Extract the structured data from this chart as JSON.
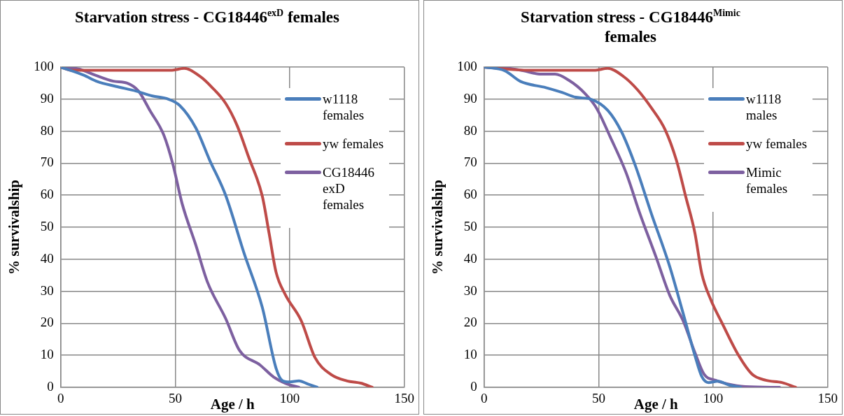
{
  "chart_data": [
    {
      "type": "line",
      "title": "Starvation stress - CG18446$^{exD}$ females",
      "xlabel": "Age / h",
      "ylabel": "% survivalship",
      "xlim": [
        0,
        150
      ],
      "xticks": [
        0,
        50,
        100,
        150
      ],
      "ylim": [
        0,
        100
      ],
      "yticks": [
        0,
        10,
        20,
        30,
        40,
        50,
        60,
        70,
        80,
        90,
        100
      ],
      "grid": true,
      "legend": "right",
      "marker": "none",
      "line_style": "solid",
      "series": [
        {
          "name": "w1118 females",
          "color": "#4a7ebb",
          "x": [
            0,
            10,
            16,
            24,
            33,
            40,
            47,
            52,
            59,
            65,
            72,
            80,
            88,
            94,
            97,
            100,
            104,
            108,
            112
          ],
          "values": [
            100,
            97.5,
            95.5,
            94,
            92.5,
            91,
            90,
            88,
            81,
            71,
            60,
            42,
            25,
            6,
            2,
            1.7,
            2,
            1,
            0
          ]
        },
        {
          "name": "yw females",
          "color": "#be4b48",
          "x": [
            0,
            5,
            20,
            48,
            54,
            61,
            66,
            72,
            77,
            82,
            88,
            91,
            94,
            98,
            105,
            111,
            118,
            125,
            131,
            136
          ],
          "values": [
            100,
            99,
            99,
            99,
            99.6,
            97,
            93.7,
            88.7,
            81.8,
            72,
            59.7,
            48,
            36,
            29,
            20.8,
            9.3,
            4,
            2,
            1.3,
            0
          ]
        },
        {
          "name": "CG18446 exD females",
          "color": "#7d60a0",
          "x": [
            0,
            8,
            15,
            23,
            29,
            34,
            39,
            45,
            49,
            53,
            59,
            64,
            72,
            78,
            87,
            93,
            98,
            104
          ],
          "values": [
            100,
            99.4,
            97.5,
            95.6,
            95,
            92.5,
            86.4,
            78.8,
            69.6,
            57.4,
            44.4,
            33,
            21.5,
            11.6,
            7,
            3.2,
            1.3,
            0
          ]
        }
      ]
    },
    {
      "type": "line",
      "title": "Starvation stress - CG18446$^{Mimic}$ females",
      "xlabel": "Age / h",
      "ylabel": "% survivalship",
      "xlim": [
        0,
        150
      ],
      "xticks": [
        0,
        50,
        100,
        150
      ],
      "ylim": [
        0,
        100
      ],
      "yticks": [
        0,
        10,
        20,
        30,
        40,
        50,
        60,
        70,
        80,
        90,
        100
      ],
      "grid": true,
      "legend": "right",
      "marker": "none",
      "line_style": "solid",
      "series": [
        {
          "name": "w1118 males",
          "color": "#4a7ebb",
          "x": [
            0,
            9,
            16,
            27,
            34,
            40,
            47,
            54,
            60,
            66,
            73,
            81,
            87,
            92,
            95,
            98,
            102,
            107,
            112
          ],
          "values": [
            100,
            98.9,
            95.5,
            93.6,
            92.1,
            90.6,
            89.9,
            86.5,
            79.8,
            69.3,
            54.3,
            37.8,
            22.8,
            10,
            3.4,
            1.5,
            1.9,
            0.7,
            0
          ]
        },
        {
          "name": "yw females",
          "color": "#be4b48",
          "x": [
            0,
            20,
            48,
            54,
            61,
            67,
            73,
            79,
            84,
            88,
            92,
            95,
            99,
            104,
            111,
            117,
            123,
            130,
            136
          ],
          "values": [
            100,
            99,
            99,
            99.6,
            97,
            92.9,
            87.3,
            80.5,
            70.8,
            59.6,
            48.3,
            35.6,
            27.3,
            19.9,
            10.1,
            4.1,
            2.2,
            1.5,
            0
          ]
        },
        {
          "name": "Mimic females",
          "color": "#7d60a0",
          "x": [
            0,
            11,
            17,
            25,
            31,
            37,
            44,
            49,
            55,
            62,
            68,
            75,
            81,
            87,
            92,
            96,
            101,
            106,
            114,
            129
          ],
          "values": [
            100,
            99.6,
            98.9,
            97.8,
            97.8,
            95.9,
            91.8,
            87.3,
            78.3,
            67,
            54.3,
            40.8,
            28.8,
            20.6,
            10.9,
            4.1,
            2.2,
            1.1,
            0.2,
            0
          ]
        }
      ]
    }
  ]
}
